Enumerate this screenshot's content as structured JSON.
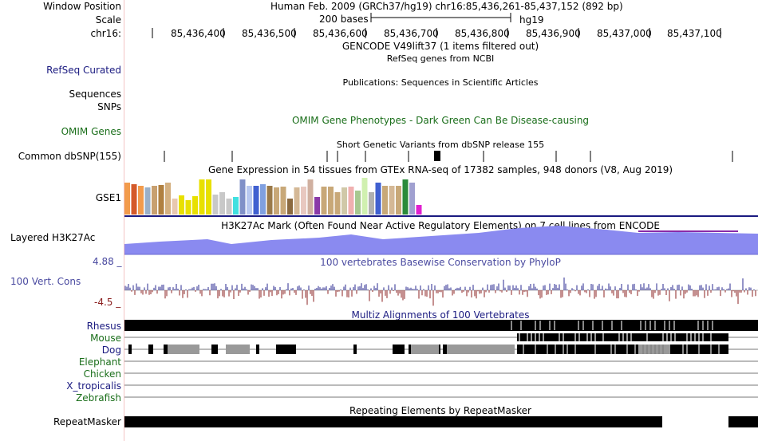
{
  "header": {
    "window_position_label": "Window Position",
    "window_position_text": "Human Feb. 2009 (GRCh37/hg19)   chr16:85,436,261-85,437,152 (892 bp)",
    "scale_label": "Scale",
    "scale_text": "200 bases",
    "scale_db": "hg19",
    "chrom_label": "chr16:",
    "ticks": [
      "85,436,400",
      "85,436,500",
      "85,436,600",
      "85,436,700",
      "85,436,800",
      "85,436,900",
      "85,437,000",
      "85,437,100"
    ]
  },
  "tracks": {
    "gencode_title": "GENCODE V49lift37 (1 items filtered out)",
    "refseq_label": "RefSeq Curated",
    "refseq_title": "RefSeq genes from NCBI",
    "sequences_label": "Sequences",
    "publications_title": "Publications: Sequences in Scientific Articles",
    "snps_label": "SNPs",
    "omim_label": "OMIM Genes",
    "omim_title": "OMIM Gene Phenotypes - Dark Green Can Be Disease-causing",
    "dbsnp_label": "Common dbSNP(155)",
    "dbsnp_title": "Short Genetic Variants from dbSNP release 155",
    "gtex_title": "Gene Expression in 54 tissues from GTEx RNA-seq of 17382 samples, 948 donors (V8, Aug 2019)",
    "gtex_gene": "GSE1",
    "h3k27_label": "Layered H3K27Ac",
    "h3k27_title": "H3K27Ac Mark (Often Found Near Active Regulatory Elements) on 7 cell lines from ENCODE",
    "cons_max": "4.88 _",
    "cons_label": "100 Vert. Cons",
    "cons_min": "-4.5 _",
    "cons_title": "100 vertebrates Basewise Conservation by PhyloP",
    "multiz_title": "Multiz Alignments of 100 Vertebrates",
    "species": [
      {
        "name": "Rhesus",
        "color": "#1a1a80"
      },
      {
        "name": "Mouse",
        "color": "#1a6e1a"
      },
      {
        "name": "Dog",
        "color": "#1a1a80"
      },
      {
        "name": "Elephant",
        "color": "#1a6e1a"
      },
      {
        "name": "Chicken",
        "color": "#1a6e1a"
      },
      {
        "name": "X_tropicalis",
        "color": "#1a1a80"
      },
      {
        "name": "Zebrafish",
        "color": "#1a6e1a"
      }
    ],
    "repeat_label": "RepeatMasker",
    "repeat_title": "Repeating Elements by RepeatMasker"
  },
  "colors": {
    "refseq_label": "#1a1a80",
    "omim_label": "#1a6e1a",
    "omim_title": "#1a6e1a",
    "cons_label": "#4a4aa0",
    "cons_min": "#8b2020",
    "h3k27_fill": "#8a8af0"
  }
}
